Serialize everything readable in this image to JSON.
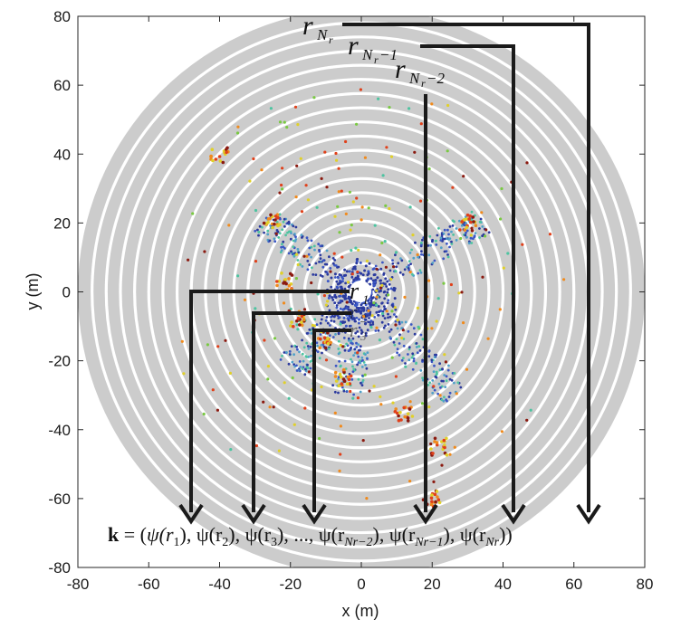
{
  "figure": {
    "xlabel": "x (m)",
    "ylabel": "y (m)",
    "xlim": [
      -80,
      80
    ],
    "ylim": [
      -80,
      80
    ],
    "xticks": [
      "-80",
      "-60",
      "-40",
      "-20",
      "0",
      "20",
      "40",
      "60",
      "80"
    ],
    "yticks": [
      "80",
      "60",
      "40",
      "20",
      "0",
      "-20",
      "-40",
      "-60",
      "-80"
    ],
    "ring_count": 20,
    "outer_radius_m": 80,
    "ring_color": "#cccccc",
    "point_colors": [
      "#2b3a9e",
      "#3a56c4",
      "#4fa0c9",
      "#4dc4a0",
      "#7ac943",
      "#e0d02a",
      "#f08a1c",
      "#e0401a",
      "#8b1a10"
    ]
  },
  "labels": {
    "r1": "r1",
    "r2": "r2",
    "r3": "r3",
    "rNr": "rNr",
    "rNr1": "rNr−1",
    "rNr2": "rNr−2"
  },
  "formula": "k = (ψ(r1), ψ(r2), ψ(r3), ..., ψ(rNr−2), ψ(rNr−1), ψ(rNr))",
  "formula_parts": {
    "k": "k",
    "eq_open": " = (",
    "psi1": "ψ(r",
    "sub1": "1",
    "sep1": "), ψ(r",
    "sub2": "2",
    "sep2": "), ψ(r",
    "sub3": "3",
    "dots": "), ..., ψ(r",
    "subN2": "Nr−2",
    "sep4": "), ψ(r",
    "subN1": "Nr−1",
    "sep5": "), ψ(r",
    "subN": "Nr",
    "close": "))"
  }
}
